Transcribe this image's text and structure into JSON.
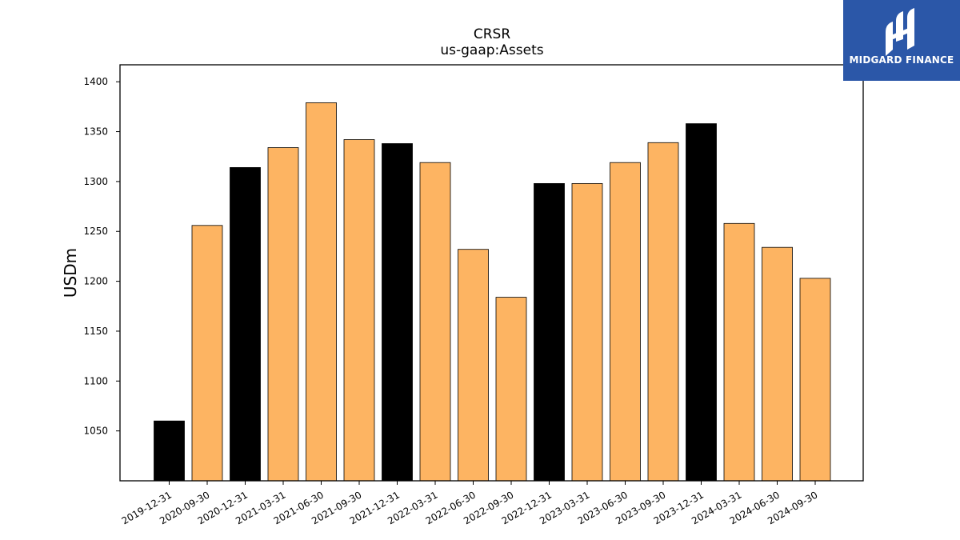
{
  "chart_data": {
    "type": "bar",
    "title": "CRSR",
    "subtitle": "us-gaap:Assets",
    "xlabel": "",
    "ylabel": "USDm",
    "ylim": [
      1000,
      1417
    ],
    "yticks": [
      1050,
      1100,
      1150,
      1200,
      1250,
      1300,
      1350,
      1400
    ],
    "grid": false,
    "categories": [
      "2019-12-31",
      "2020-09-30",
      "2020-12-31",
      "2021-03-31",
      "2021-06-30",
      "2021-09-30",
      "2021-12-31",
      "2022-03-31",
      "2022-06-30",
      "2022-09-30",
      "2022-12-31",
      "2023-03-31",
      "2023-06-30",
      "2023-09-30",
      "2023-12-31",
      "2024-03-31",
      "2024-06-30",
      "2024-09-30"
    ],
    "values": [
      1060,
      1256,
      1314,
      1334,
      1379,
      1342,
      1338,
      1319,
      1232,
      1184,
      1298,
      1298,
      1319,
      1339,
      1358,
      1258,
      1234,
      1203
    ],
    "annual_color": "#000000",
    "quarterly_color": "#fdb462",
    "bar_colors": [
      "#000000",
      "#fdb462",
      "#000000",
      "#fdb462",
      "#fdb462",
      "#fdb462",
      "#000000",
      "#fdb462",
      "#fdb462",
      "#fdb462",
      "#000000",
      "#fdb462",
      "#fdb462",
      "#fdb462",
      "#000000",
      "#fdb462",
      "#fdb462",
      "#fdb462"
    ]
  },
  "logo": {
    "text": "MIDGARD FINANCE",
    "icon": "midgard-logo-icon",
    "color": "#2b57a8"
  }
}
